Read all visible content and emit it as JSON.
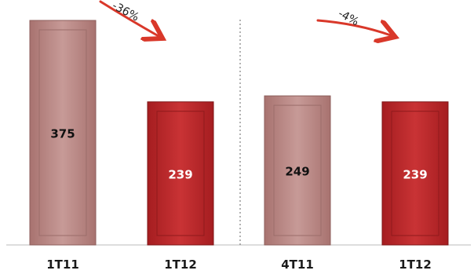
{
  "chart_data": {
    "type": "bar",
    "categories": [
      "1T11",
      "1T12",
      "4T11",
      "1T12"
    ],
    "values": [
      375,
      239,
      249,
      239
    ],
    "ylim": [
      0,
      375
    ],
    "groups": [
      {
        "categories": [
          0,
          1
        ],
        "change_label": "-36%"
      },
      {
        "categories": [
          2,
          3
        ],
        "change_label": "-4%"
      }
    ],
    "colors": {
      "prior_period": "#b98582",
      "current_period": "#b8282a"
    },
    "label_colors": [
      "#111111",
      "#ffffff",
      "#111111",
      "#ffffff"
    ],
    "grid": false,
    "legend": "none"
  }
}
